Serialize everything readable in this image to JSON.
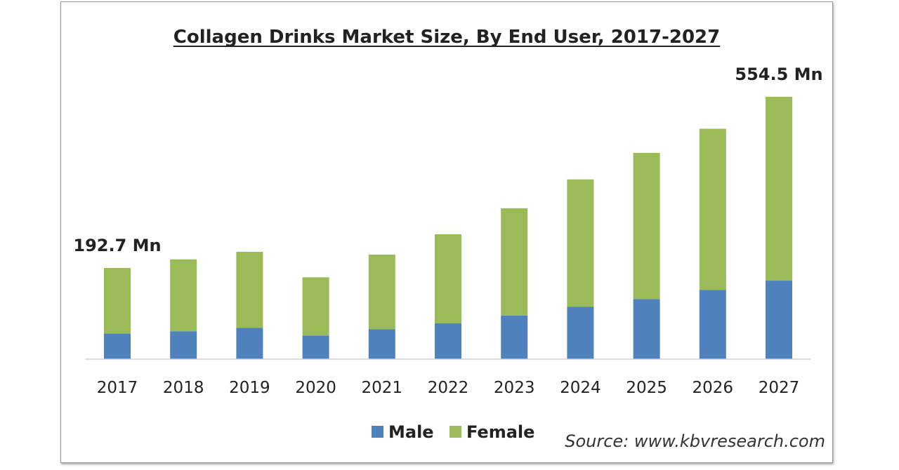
{
  "chart_data": {
    "type": "bar",
    "stacked": true,
    "title": "Collagen Drinks Market Size, By End User, 2017-2027",
    "xlabel": "",
    "ylabel": "",
    "categories": [
      "2017",
      "2018",
      "2019",
      "2020",
      "2021",
      "2022",
      "2023",
      "2024",
      "2025",
      "2026",
      "2027"
    ],
    "series": [
      {
        "name": "Male",
        "color": "#4f81bd",
        "values": [
          54,
          59,
          66,
          50,
          63,
          76,
          92,
          111,
          127,
          146,
          166
        ]
      },
      {
        "name": "Female",
        "color": "#9bbb59",
        "values": [
          138.7,
          152,
          161,
          123,
          158,
          188,
          227,
          269,
          309,
          341,
          388.5
        ]
      }
    ],
    "ylim": [
      0,
      600
    ],
    "grid": false,
    "legend": "bottom-center",
    "annotations": [
      {
        "category": "2017",
        "text": "192.7 Mn"
      },
      {
        "category": "2027",
        "text": "554.5 Mn"
      }
    ],
    "source": "Source: www.kbvresearch.com"
  }
}
